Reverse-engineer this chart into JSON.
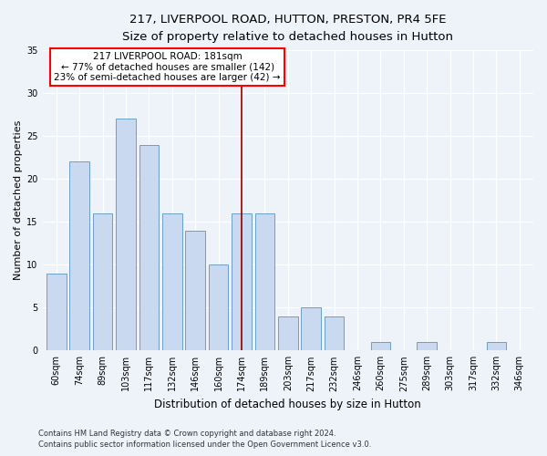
{
  "title1": "217, LIVERPOOL ROAD, HUTTON, PRESTON, PR4 5FE",
  "title2": "Size of property relative to detached houses in Hutton",
  "xlabel": "Distribution of detached houses by size in Hutton",
  "ylabel": "Number of detached properties",
  "categories": [
    "60sqm",
    "74sqm",
    "89sqm",
    "103sqm",
    "117sqm",
    "132sqm",
    "146sqm",
    "160sqm",
    "174sqm",
    "189sqm",
    "203sqm",
    "217sqm",
    "232sqm",
    "246sqm",
    "260sqm",
    "275sqm",
    "289sqm",
    "303sqm",
    "317sqm",
    "332sqm",
    "346sqm"
  ],
  "values": [
    9,
    22,
    16,
    27,
    24,
    16,
    14,
    10,
    16,
    16,
    4,
    5,
    4,
    0,
    1,
    0,
    1,
    0,
    0,
    1,
    0
  ],
  "bar_color": "#c9d9f0",
  "bar_edge_color": "#6b9fc8",
  "highlight_index": 8,
  "highlight_color": "#8b0000",
  "ylim": [
    0,
    35
  ],
  "yticks": [
    0,
    5,
    10,
    15,
    20,
    25,
    30,
    35
  ],
  "annotation_line1": "217 LIVERPOOL ROAD: 181sqm",
  "annotation_line2": "← 77% of detached houses are smaller (142)",
  "annotation_line3": "23% of semi-detached houses are larger (42) →",
  "footnote1": "Contains HM Land Registry data © Crown copyright and database right 2024.",
  "footnote2": "Contains public sector information licensed under the Open Government Licence v3.0.",
  "background_color": "#eef2f9",
  "title1_fontsize": 9.5,
  "title2_fontsize": 8.5,
  "xlabel_fontsize": 8.5,
  "ylabel_fontsize": 8,
  "tick_fontsize": 7,
  "annot_fontsize": 7.5,
  "footnote_fontsize": 6
}
